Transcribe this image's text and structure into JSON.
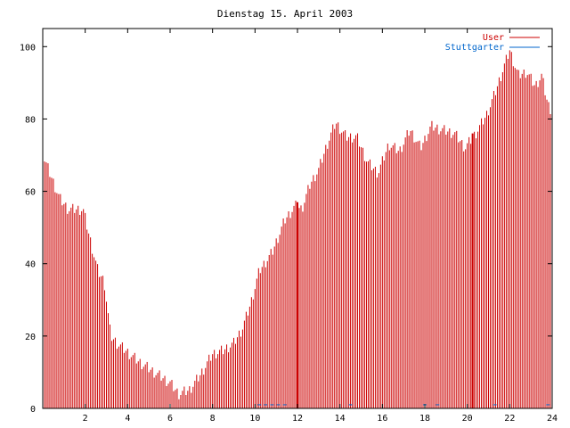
{
  "chart_data": {
    "type": "bar",
    "title": "Dienstag 15. April 2003",
    "xlabel": "",
    "ylabel": "",
    "xlim": [
      0,
      24
    ],
    "ylim": [
      0,
      105
    ],
    "xticks": [
      2,
      4,
      6,
      8,
      10,
      12,
      14,
      16,
      18,
      20,
      22,
      24
    ],
    "yticks": [
      0,
      20,
      40,
      60,
      80,
      100
    ],
    "grid": false,
    "legend_position": "top-right",
    "series": [
      {
        "name": "User",
        "color": "#cc0000",
        "style": "impulses",
        "profile": [
          [
            0.0,
            70
          ],
          [
            0.4,
            64
          ],
          [
            0.8,
            58
          ],
          [
            1.2,
            55
          ],
          [
            1.6,
            55
          ],
          [
            1.9,
            55
          ],
          [
            2.3,
            45
          ],
          [
            2.6,
            38
          ],
          [
            2.9,
            35
          ],
          [
            3.2,
            20
          ],
          [
            3.5,
            18
          ],
          [
            3.9,
            16
          ],
          [
            4.5,
            13
          ],
          [
            5.0,
            11
          ],
          [
            5.5,
            9
          ],
          [
            6.0,
            7
          ],
          [
            6.4,
            4
          ],
          [
            6.9,
            5
          ],
          [
            7.4,
            9
          ],
          [
            8.0,
            15
          ],
          [
            8.5,
            16
          ],
          [
            9.0,
            18
          ],
          [
            9.4,
            22
          ],
          [
            9.8,
            29
          ],
          [
            10.2,
            38
          ],
          [
            10.8,
            43
          ],
          [
            11.4,
            52
          ],
          [
            11.9,
            56
          ],
          [
            12.2,
            55
          ],
          [
            12.6,
            62
          ],
          [
            13.0,
            66
          ],
          [
            13.4,
            73
          ],
          [
            13.8,
            79
          ],
          [
            14.3,
            75
          ],
          [
            14.8,
            75
          ],
          [
            15.3,
            68
          ],
          [
            15.8,
            65
          ],
          [
            16.3,
            73
          ],
          [
            16.8,
            71
          ],
          [
            17.3,
            77
          ],
          [
            17.8,
            72
          ],
          [
            18.3,
            78
          ],
          [
            18.8,
            77
          ],
          [
            19.4,
            76
          ],
          [
            19.9,
            72
          ],
          [
            20.4,
            76
          ],
          [
            20.9,
            81
          ],
          [
            21.3,
            87
          ],
          [
            21.7,
            94
          ],
          [
            22.0,
            99
          ],
          [
            22.4,
            92
          ],
          [
            22.8,
            93
          ],
          [
            23.2,
            89
          ],
          [
            23.5,
            92
          ],
          [
            23.8,
            84
          ],
          [
            24.0,
            82
          ]
        ],
        "spikes": [
          {
            "x": 12.0,
            "y": 57
          },
          {
            "x": 20.25,
            "y": 76
          }
        ]
      },
      {
        "name": "Stuttgarter",
        "color": "#0066cc",
        "style": "impulses",
        "values": [
          [
            10.2,
            1
          ],
          [
            10.5,
            1
          ],
          [
            10.8,
            1
          ],
          [
            11.1,
            1
          ],
          [
            11.4,
            1
          ],
          [
            14.5,
            1
          ],
          [
            18.0,
            1
          ],
          [
            18.6,
            1
          ],
          [
            21.3,
            1
          ],
          [
            23.8,
            1
          ]
        ]
      }
    ]
  }
}
